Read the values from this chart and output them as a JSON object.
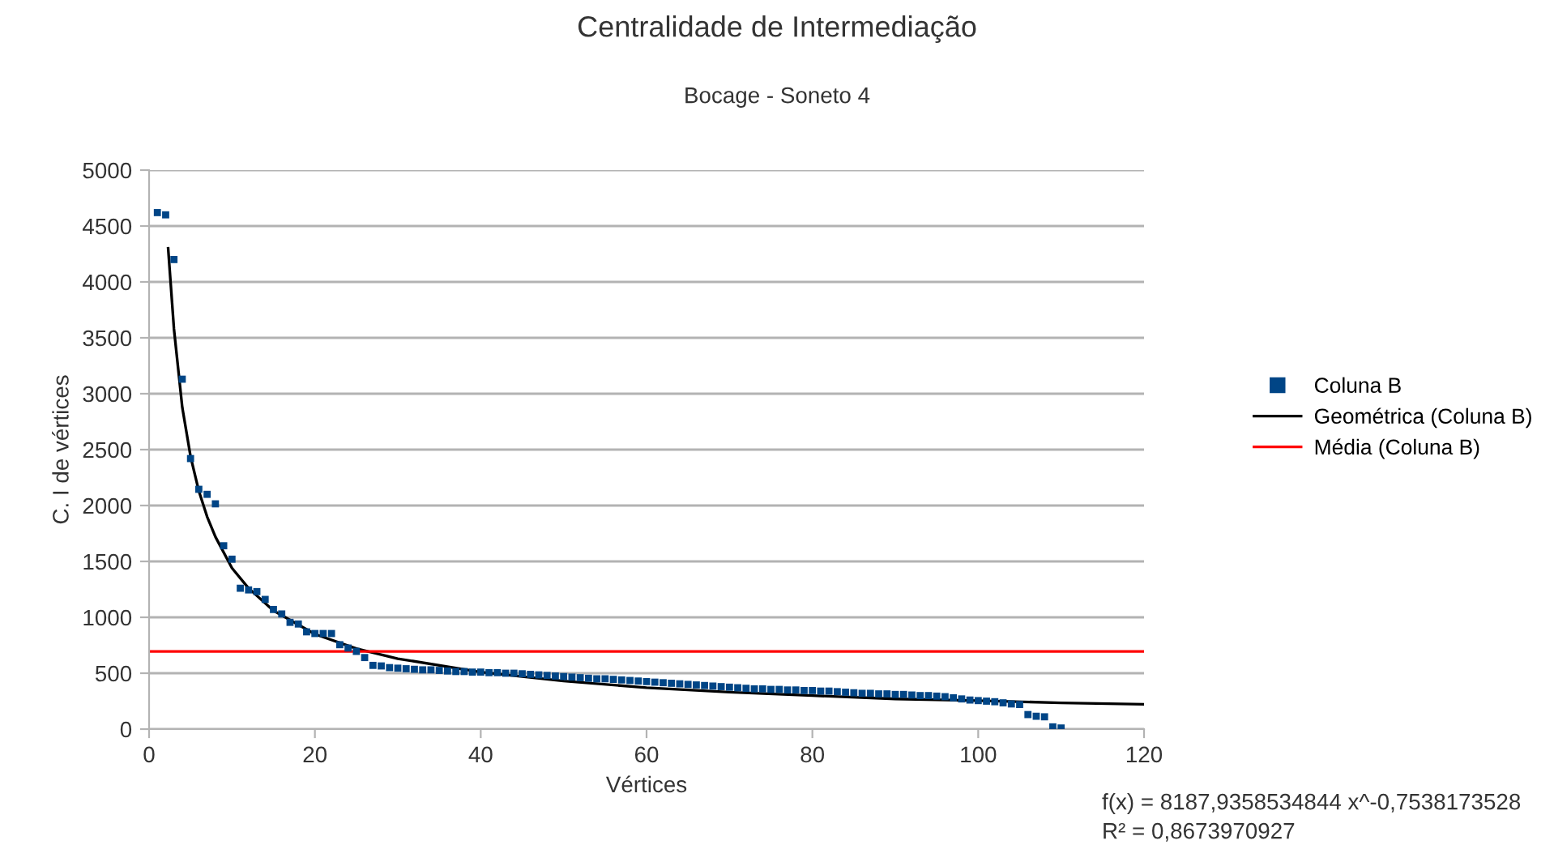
{
  "chart_data": {
    "type": "scatter",
    "title": "Centralidade de Intermediação",
    "subtitle": "Bocage - Soneto 4",
    "xlabel": "Vértices",
    "ylabel": "C. I de vértices",
    "xlim": [
      0,
      120
    ],
    "xticks": [
      0,
      20,
      40,
      60,
      80,
      100,
      120
    ],
    "ylim": [
      0,
      5000
    ],
    "yticks": [
      0,
      500,
      1000,
      1500,
      2000,
      2500,
      3000,
      3500,
      4000,
      4500,
      5000
    ],
    "grid": "y",
    "legend": "right",
    "series": [
      {
        "name": "Coluna B",
        "color": "#004586",
        "marker": "square",
        "x": [
          1,
          2,
          3,
          4,
          5,
          6,
          7,
          8,
          9,
          10,
          11,
          12,
          13,
          14,
          15,
          16,
          17,
          18,
          19,
          20,
          21,
          22,
          23,
          24,
          25,
          26,
          27,
          28,
          29,
          30,
          31,
          32,
          33,
          34,
          35,
          36,
          37,
          38,
          39,
          40,
          41,
          42,
          43,
          44,
          45,
          46,
          47,
          48,
          49,
          50,
          51,
          52,
          53,
          54,
          55,
          56,
          57,
          58,
          59,
          60,
          61,
          62,
          63,
          64,
          65,
          66,
          67,
          68,
          69,
          70,
          71,
          72,
          73,
          74,
          75,
          76,
          77,
          78,
          79,
          80,
          81,
          82,
          83,
          84,
          85,
          86,
          87,
          88,
          89,
          90,
          91,
          92,
          93,
          94,
          95,
          96,
          97,
          98,
          99,
          100,
          101,
          102,
          103,
          104,
          105,
          106,
          107,
          108,
          109,
          110
        ],
        "values": [
          4620,
          4600,
          4200,
          3130,
          2420,
          2145,
          2100,
          2015,
          1640,
          1520,
          1260,
          1245,
          1230,
          1160,
          1070,
          1030,
          955,
          940,
          870,
          855,
          855,
          855,
          755,
          725,
          695,
          640,
          570,
          565,
          550,
          545,
          540,
          535,
          530,
          530,
          525,
          520,
          515,
          515,
          510,
          510,
          505,
          505,
          500,
          500,
          495,
          490,
          485,
          480,
          475,
          470,
          465,
          460,
          455,
          450,
          450,
          445,
          440,
          435,
          430,
          425,
          420,
          415,
          410,
          405,
          400,
          395,
          390,
          385,
          380,
          375,
          370,
          365,
          360,
          360,
          355,
          355,
          350,
          350,
          345,
          345,
          340,
          340,
          335,
          330,
          325,
          320,
          320,
          315,
          315,
          310,
          310,
          305,
          300,
          300,
          295,
          290,
          280,
          270,
          260,
          255,
          250,
          245,
          235,
          225,
          220,
          130,
          115,
          110,
          20,
          10
        ]
      },
      {
        "name": "Geométrica (Coluna B)",
        "color": "#000000",
        "type": "line",
        "marker": "none",
        "x": [
          2.3,
          3,
          4,
          5,
          6,
          7,
          8,
          10,
          12,
          15,
          20,
          25,
          30,
          40,
          50,
          60,
          70,
          80,
          90,
          100,
          110,
          120
        ],
        "values": [
          4300,
          3580,
          2880,
          2440,
          2130,
          1900,
          1720,
          1440,
          1260,
          1060,
          850,
          720,
          630,
          510,
          430,
          370,
          330,
          300,
          270,
          255,
          235,
          222
        ]
      }
    ],
    "ref_lines": [
      {
        "axis": "y",
        "value": 695,
        "label": "Média (Coluna B)",
        "color": "#ff0000"
      }
    ],
    "annotations": [
      "f(x) = 8187,9358534844 x^-0,7538173528",
      "R² = 0,8673970927"
    ]
  }
}
